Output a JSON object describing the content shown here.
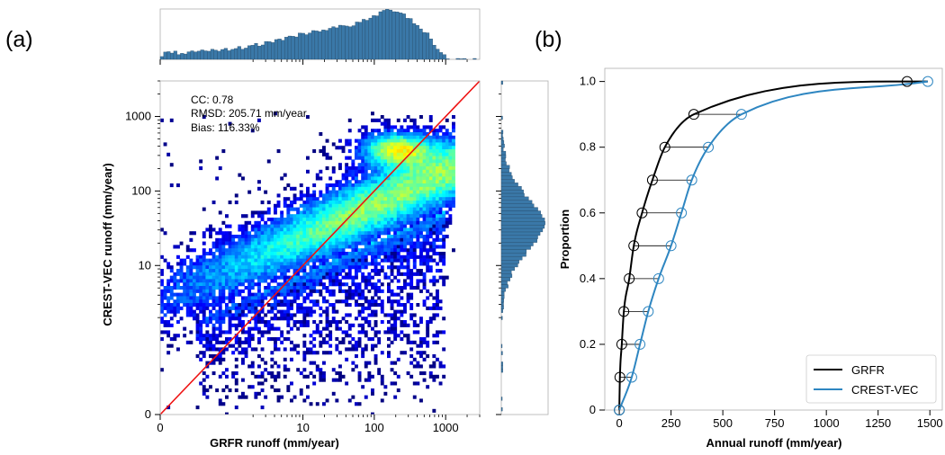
{
  "panel_labels": {
    "a": "(a)",
    "b": "(b)"
  },
  "colors": {
    "grfr": "#000000",
    "crest": "#2e86c1",
    "identity_line": "#ee1111",
    "hist_fill": "#3a78a8",
    "heat_low": "#00008b",
    "heat_high": "#cc0000"
  },
  "chart_data": [
    {
      "id": "panel-a",
      "type": "heatmap",
      "xlabel": "GRFR runoff (mm/year)",
      "ylabel": "CREST-VEC runoff (mm/year)",
      "scale": "symlog",
      "xlim": [
        0,
        3000
      ],
      "ylim": [
        0,
        3000
      ],
      "xticks": [
        0,
        10,
        100,
        1000
      ],
      "yticks": [
        0,
        10,
        100,
        1000
      ],
      "xticklabels": [
        "0",
        "10",
        "100",
        "1000"
      ],
      "yticklabels": [
        "0",
        "10",
        "100",
        "1000"
      ],
      "identity_line": true,
      "annotations": [
        "CC: 0.78",
        "RMSD: 205.71 mm/year",
        "Bias: 116.33%"
      ],
      "density_peak": {
        "x": 200,
        "y": 370
      },
      "marginal_histograms": {
        "top": "GRFR runoff distribution",
        "right": "CREST-VEC runoff distribution"
      }
    },
    {
      "id": "panel-b",
      "type": "line",
      "xlabel": "Annual runoff (mm/year)",
      "ylabel": "Proportion",
      "xlim": [
        -70,
        1560
      ],
      "ylim": [
        0,
        1.04
      ],
      "xticks": [
        0,
        250,
        500,
        750,
        1000,
        1250,
        1500
      ],
      "yticks": [
        0.0,
        0.2,
        0.4,
        0.6,
        0.8,
        1.0
      ],
      "xticklabels": [
        "0",
        "250",
        "500",
        "750",
        "1000",
        "1250",
        "1500"
      ],
      "yticklabels": [
        "0",
        "0.2",
        "0.4",
        "0.6",
        "0.8",
        "1.0"
      ],
      "legend_position": "bottom-right",
      "quantiles": [
        0,
        0.1,
        0.2,
        0.3,
        0.4,
        0.5,
        0.6,
        0.7,
        0.8,
        0.9,
        1.0
      ],
      "series": [
        {
          "name": "GRFR",
          "values": [
            0,
            3,
            12,
            22,
            48,
            70,
            110,
            160,
            220,
            360,
            1390
          ]
        },
        {
          "name": "CREST-VEC",
          "values": [
            0,
            60,
            100,
            140,
            190,
            250,
            300,
            350,
            430,
            590,
            1490
          ]
        }
      ]
    }
  ]
}
